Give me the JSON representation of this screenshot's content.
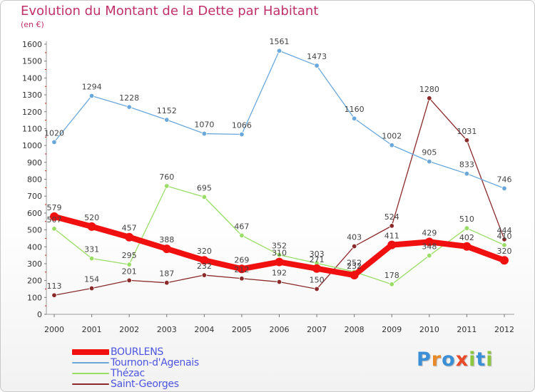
{
  "header": {
    "title": "Evolution du Montant de la Dette par Habitant",
    "subtitle": "(en €)"
  },
  "logo": {
    "text": "Proxiti",
    "letters": [
      {
        "ch": "P",
        "color": "#3a8fd6"
      },
      {
        "ch": "r",
        "color": "#e8892a"
      },
      {
        "ch": "o",
        "color": "#3a8fd6"
      },
      {
        "ch": "x",
        "color": "#e84a2a"
      },
      {
        "ch": "i",
        "color": "#8dc63f"
      },
      {
        "ch": "t",
        "color": "#3a8fd6"
      },
      {
        "ch": "i",
        "color": "#8dc63f"
      }
    ]
  },
  "chart_data": {
    "type": "line",
    "title": "Evolution du Montant de la Dette par Habitant",
    "subtitle": "(en €)",
    "xlabel": "",
    "ylabel": "",
    "x": [
      "2000",
      "2001",
      "2002",
      "2003",
      "2004",
      "2005",
      "2006",
      "2007",
      "2008",
      "2009",
      "2010",
      "2011",
      "2012"
    ],
    "ylim": [
      0,
      1600
    ],
    "yticks": [
      0,
      100,
      200,
      300,
      400,
      500,
      600,
      700,
      800,
      900,
      1000,
      1100,
      1200,
      1300,
      1400,
      1500,
      1600
    ],
    "grid": false,
    "legend_position": "bottom-left",
    "series": [
      {
        "name": "BOURLENS",
        "color": "#f01010",
        "values": [
          579,
          520,
          457,
          388,
          320,
          269,
          310,
          271,
          232,
          411,
          429,
          402,
          320
        ]
      },
      {
        "name": "Tournon-d'Agenais",
        "color": "#6aa8dc",
        "values": [
          1020,
          1294,
          1228,
          1152,
          1070,
          1066,
          1561,
          1473,
          1160,
          1002,
          905,
          833,
          746
        ]
      },
      {
        "name": "Thézac",
        "color": "#99dd66",
        "values": [
          507,
          331,
          295,
          760,
          695,
          467,
          352,
          303,
          252,
          178,
          348,
          510,
          410
        ]
      },
      {
        "name": "Saint-Georges",
        "color": "#8b2a2a",
        "values": [
          113,
          154,
          201,
          187,
          232,
          212,
          192,
          150,
          403,
          524,
          1280,
          1031,
          444
        ]
      }
    ]
  }
}
